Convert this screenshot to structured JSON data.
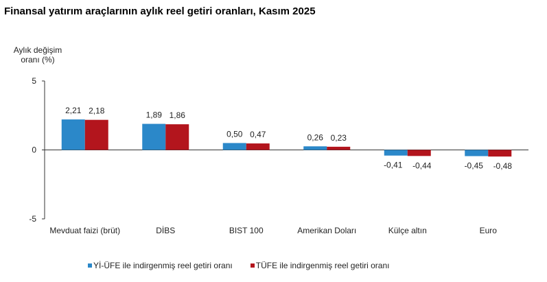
{
  "chart_data": {
    "type": "bar",
    "title": "Finansal yatırım araçlarının aylık reel getiri oranları, Kasım 2025",
    "ylabel_lines": [
      "Aylık değişim",
      "oranı (%)"
    ],
    "xlabel": "",
    "ylim": [
      -5,
      5
    ],
    "yticks": [
      5,
      0,
      -5
    ],
    "ytick_labels": [
      "5",
      "0",
      "-5"
    ],
    "grid": false,
    "legend_placement": "bottom",
    "categories": [
      "Mevduat faizi (brüt)",
      "DİBS",
      "BIST 100",
      "Amerikan Doları",
      "Külçe altın",
      "Euro"
    ],
    "series": [
      {
        "name": "Yİ-ÜFE ile indirgenmiş reel getiri oranı",
        "color": "#2b88c9",
        "values": [
          2.21,
          1.89,
          0.5,
          0.26,
          -0.41,
          -0.45
        ],
        "labels": [
          "2,21",
          "1,89",
          "0,50",
          "0,26",
          "-0,41",
          "-0,45"
        ]
      },
      {
        "name": "TÜFE ile indirgenmiş reel getiri oranı",
        "color": "#b3151d",
        "values": [
          2.18,
          1.86,
          0.47,
          0.23,
          -0.44,
          -0.48
        ],
        "labels": [
          "2,18",
          "1,86",
          "0,47",
          "0,23",
          "-0,44",
          "-0,48"
        ]
      }
    ]
  }
}
